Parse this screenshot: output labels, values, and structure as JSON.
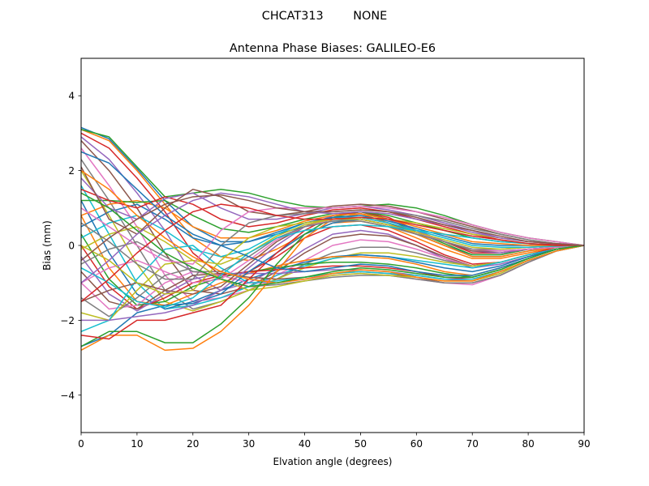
{
  "chart_data": {
    "type": "line",
    "suptitle": "CHCAT313        NONE",
    "title": "Antenna Phase Biases: GALILEO-E6",
    "xlabel": "Elvation angle (degrees)",
    "ylabel": "Bias (mm)",
    "xlim": [
      0,
      90
    ],
    "ylim": [
      -5,
      5
    ],
    "xticks": [
      0,
      10,
      20,
      30,
      40,
      50,
      60,
      70,
      80,
      90
    ],
    "yticks": [
      -4,
      -2,
      0,
      2,
      4
    ],
    "grid": false,
    "legend": "none",
    "x": [
      0,
      5,
      10,
      15,
      20,
      25,
      30,
      35,
      40,
      45,
      50,
      55,
      60,
      65,
      70,
      75,
      80,
      85,
      90
    ],
    "colors": [
      "#1f77b4",
      "#ff7f0e",
      "#2ca02c",
      "#d62728",
      "#9467bd",
      "#8c564b",
      "#e377c2",
      "#7f7f7f",
      "#bcbd22",
      "#17becf"
    ],
    "series": [
      {
        "values": [
          3.15,
          2.85,
          2.05,
          1.2,
          0.5,
          0.1,
          0.1,
          0.3,
          0.5,
          0.65,
          0.7,
          0.55,
          0.3,
          0.0,
          -0.3,
          -0.3,
          -0.15,
          -0.05,
          0.0
        ]
      },
      {
        "values": [
          3.1,
          2.8,
          2.0,
          1.1,
          0.2,
          -0.3,
          -0.4,
          -0.1,
          0.3,
          0.6,
          0.65,
          0.5,
          0.2,
          -0.1,
          -0.35,
          -0.35,
          -0.2,
          -0.05,
          0.0
        ]
      },
      {
        "values": [
          3.1,
          2.9,
          2.1,
          1.3,
          1.4,
          1.5,
          1.4,
          1.2,
          1.05,
          1.0,
          1.05,
          1.1,
          1.0,
          0.8,
          0.55,
          0.35,
          0.2,
          0.1,
          0.0
        ]
      },
      {
        "values": [
          3.0,
          2.6,
          1.8,
          0.9,
          -0.2,
          -0.8,
          -0.7,
          -0.3,
          0.2,
          0.5,
          0.55,
          0.4,
          0.1,
          -0.25,
          -0.5,
          -0.45,
          -0.25,
          -0.05,
          0.0
        ]
      },
      {
        "values": [
          2.9,
          2.3,
          1.4,
          0.4,
          -0.8,
          -1.2,
          -1.0,
          -0.6,
          -0.1,
          0.3,
          0.4,
          0.3,
          0.0,
          -0.35,
          -0.6,
          -0.5,
          -0.3,
          -0.1,
          0.0
        ]
      },
      {
        "values": [
          2.8,
          2.0,
          1.0,
          -0.2,
          -1.2,
          -1.3,
          -1.1,
          -0.7,
          -0.2,
          0.2,
          0.3,
          0.25,
          0.0,
          -0.3,
          -0.55,
          -0.45,
          -0.25,
          -0.1,
          0.0
        ]
      },
      {
        "values": [
          2.6,
          1.6,
          0.5,
          -0.8,
          -1.5,
          -1.4,
          -1.2,
          -0.8,
          -0.4,
          0.0,
          0.15,
          0.1,
          -0.1,
          -0.35,
          -0.55,
          -0.45,
          -0.25,
          -0.1,
          0.0
        ]
      },
      {
        "values": [
          2.3,
          1.2,
          0.0,
          -1.2,
          -1.7,
          -1.5,
          -1.2,
          -0.9,
          -0.5,
          -0.2,
          -0.05,
          -0.05,
          -0.2,
          -0.4,
          -0.55,
          -0.45,
          -0.25,
          -0.1,
          0.0
        ]
      },
      {
        "values": [
          2.0,
          0.8,
          -0.5,
          -1.5,
          -1.75,
          -1.5,
          -1.2,
          -0.9,
          -0.6,
          -0.35,
          -0.2,
          -0.2,
          -0.3,
          -0.45,
          -0.55,
          -0.45,
          -0.25,
          -0.1,
          0.0
        ]
      },
      {
        "values": [
          1.6,
          0.3,
          -1.0,
          -1.7,
          -1.6,
          -1.4,
          -1.1,
          -0.8,
          -0.55,
          -0.35,
          -0.25,
          -0.3,
          -0.4,
          -0.5,
          -0.6,
          -0.45,
          -0.25,
          -0.1,
          0.0
        ]
      },
      {
        "values": [
          1.2,
          -0.2,
          -1.3,
          -1.7,
          -1.5,
          -1.2,
          -0.9,
          -0.65,
          -0.45,
          -0.3,
          -0.25,
          -0.3,
          -0.45,
          -0.6,
          -0.7,
          -0.55,
          -0.3,
          -0.1,
          0.0
        ]
      },
      {
        "values": [
          0.8,
          -0.6,
          -1.5,
          -1.6,
          -1.3,
          -1.0,
          -0.75,
          -0.55,
          -0.4,
          -0.3,
          -0.3,
          -0.35,
          -0.5,
          -0.7,
          -0.8,
          -0.6,
          -0.35,
          -0.1,
          0.0
        ]
      },
      {
        "values": [
          0.3,
          -0.9,
          -1.6,
          -1.5,
          -1.1,
          -0.85,
          -0.7,
          -0.6,
          -0.5,
          -0.45,
          -0.45,
          -0.5,
          -0.6,
          -0.75,
          -0.85,
          -0.65,
          -0.35,
          -0.1,
          0.0
        ]
      },
      {
        "values": [
          0.0,
          -1.1,
          -1.7,
          -1.4,
          -1.0,
          -0.8,
          -0.7,
          -0.65,
          -0.6,
          -0.55,
          -0.55,
          -0.6,
          -0.7,
          -0.85,
          -0.9,
          -0.7,
          -0.4,
          -0.15,
          0.0
        ]
      },
      {
        "values": [
          -0.3,
          -1.3,
          -1.75,
          -1.3,
          -0.9,
          -0.75,
          -0.75,
          -0.75,
          -0.7,
          -0.65,
          -0.65,
          -0.7,
          -0.8,
          -0.9,
          -0.95,
          -0.75,
          -0.4,
          -0.15,
          0.0
        ]
      },
      {
        "values": [
          -0.7,
          -1.5,
          -1.7,
          -1.2,
          -0.8,
          -0.75,
          -0.85,
          -0.9,
          -0.85,
          -0.75,
          -0.7,
          -0.75,
          -0.85,
          -1.0,
          -1.0,
          -0.8,
          -0.45,
          -0.15,
          0.0
        ]
      },
      {
        "values": [
          -1.0,
          -1.7,
          -1.6,
          -1.0,
          -0.7,
          -0.8,
          -1.0,
          -1.0,
          -0.9,
          -0.8,
          -0.75,
          -0.8,
          -0.9,
          -1.0,
          -1.05,
          -0.8,
          -0.45,
          -0.15,
          0.0
        ]
      },
      {
        "values": [
          -1.4,
          -1.9,
          -1.4,
          -0.8,
          -0.6,
          -0.9,
          -1.1,
          -1.05,
          -0.95,
          -0.85,
          -0.8,
          -0.8,
          -0.9,
          -1.0,
          -1.0,
          -0.8,
          -0.45,
          -0.15,
          0.0
        ]
      },
      {
        "values": [
          -1.8,
          -2.0,
          -1.2,
          -0.5,
          -0.4,
          -0.9,
          -1.2,
          -1.1,
          -0.95,
          -0.8,
          -0.75,
          -0.8,
          -0.85,
          -0.95,
          -0.95,
          -0.75,
          -0.4,
          -0.15,
          0.0
        ]
      },
      {
        "values": [
          -2.3,
          -2.0,
          -0.9,
          -0.1,
          0.0,
          -0.6,
          -1.0,
          -0.95,
          -0.85,
          -0.75,
          -0.7,
          -0.75,
          -0.8,
          -0.9,
          -0.9,
          -0.7,
          -0.4,
          -0.15,
          0.0
        ]
      },
      {
        "values": [
          -2.7,
          -2.4,
          -1.8,
          -1.6,
          -1.55,
          -1.3,
          -0.7,
          -0.2,
          0.3,
          0.6,
          0.7,
          0.55,
          0.3,
          0.0,
          -0.25,
          -0.25,
          -0.1,
          -0.05,
          0.0
        ]
      },
      {
        "values": [
          -2.8,
          -2.4,
          -2.4,
          -2.8,
          -2.75,
          -2.3,
          -1.6,
          -0.7,
          0.2,
          0.7,
          0.85,
          0.6,
          0.3,
          0.0,
          -0.3,
          -0.3,
          -0.15,
          -0.05,
          0.0
        ]
      },
      {
        "values": [
          -2.7,
          -2.3,
          -2.3,
          -2.6,
          -2.6,
          -2.1,
          -1.4,
          -0.5,
          0.3,
          0.75,
          0.9,
          0.7,
          0.35,
          0.05,
          -0.25,
          -0.25,
          -0.1,
          -0.05,
          0.0
        ]
      },
      {
        "values": [
          -2.4,
          -2.5,
          -2.0,
          -2.0,
          -1.8,
          -1.6,
          -0.9,
          -0.2,
          0.4,
          0.8,
          0.9,
          0.75,
          0.4,
          0.1,
          -0.2,
          -0.2,
          -0.1,
          -0.05,
          0.0
        ]
      },
      {
        "values": [
          -2.0,
          -2.0,
          -1.9,
          -1.8,
          -1.6,
          -1.2,
          -0.6,
          0.0,
          0.5,
          0.8,
          0.85,
          0.7,
          0.4,
          0.1,
          -0.15,
          -0.2,
          -0.1,
          -0.05,
          0.0
        ]
      },
      {
        "values": [
          -1.5,
          -1.2,
          -1.0,
          -1.2,
          -1.3,
          -1.1,
          -0.5,
          0.1,
          0.5,
          0.75,
          0.75,
          0.6,
          0.35,
          0.1,
          -0.15,
          -0.15,
          -0.1,
          -0.05,
          0.0
        ]
      },
      {
        "values": [
          -1.0,
          -0.6,
          -0.4,
          -0.7,
          -1.0,
          -0.9,
          -0.4,
          0.15,
          0.5,
          0.7,
          0.7,
          0.55,
          0.35,
          0.1,
          -0.1,
          -0.15,
          -0.1,
          -0.05,
          0.0
        ]
      },
      {
        "values": [
          -0.5,
          -0.1,
          0.1,
          -0.3,
          -0.7,
          -0.7,
          -0.3,
          0.2,
          0.5,
          0.65,
          0.65,
          0.5,
          0.3,
          0.1,
          -0.1,
          -0.1,
          -0.05,
          -0.02,
          0.0
        ]
      },
      {
        "values": [
          -0.1,
          0.3,
          0.5,
          0.1,
          -0.4,
          -0.5,
          -0.2,
          0.25,
          0.55,
          0.7,
          0.7,
          0.55,
          0.35,
          0.15,
          -0.05,
          -0.1,
          -0.05,
          -0.02,
          0.0
        ]
      },
      {
        "values": [
          0.2,
          0.6,
          0.8,
          0.4,
          -0.1,
          -0.3,
          -0.1,
          0.3,
          0.6,
          0.75,
          0.75,
          0.6,
          0.4,
          0.2,
          0.0,
          -0.05,
          -0.05,
          -0.02,
          0.0
        ]
      },
      {
        "values": [
          0.5,
          0.9,
          1.1,
          0.7,
          0.2,
          0.0,
          0.1,
          0.35,
          0.6,
          0.75,
          0.8,
          0.65,
          0.45,
          0.25,
          0.05,
          0.0,
          0.0,
          0.0,
          0.0
        ]
      },
      {
        "values": [
          0.8,
          1.1,
          1.2,
          1.0,
          0.5,
          0.2,
          0.2,
          0.4,
          0.65,
          0.8,
          0.85,
          0.7,
          0.5,
          0.3,
          0.1,
          0.05,
          0.0,
          0.0,
          0.0
        ]
      },
      {
        "values": [
          1.2,
          1.2,
          1.15,
          1.2,
          0.8,
          0.45,
          0.35,
          0.5,
          0.7,
          0.85,
          0.9,
          0.8,
          0.6,
          0.4,
          0.2,
          0.1,
          0.05,
          0.0,
          0.0
        ]
      },
      {
        "values": [
          1.5,
          1.2,
          1.0,
          1.3,
          1.1,
          0.7,
          0.5,
          0.6,
          0.8,
          0.95,
          1.0,
          0.9,
          0.7,
          0.5,
          0.3,
          0.15,
          0.05,
          0.0,
          0.0
        ]
      },
      {
        "values": [
          1.8,
          1.0,
          0.7,
          1.25,
          1.4,
          1.0,
          0.7,
          0.7,
          0.85,
          1.0,
          1.05,
          0.95,
          0.8,
          0.6,
          0.4,
          0.2,
          0.1,
          0.05,
          0.0
        ]
      },
      {
        "values": [
          2.1,
          0.7,
          0.3,
          1.0,
          1.5,
          1.3,
          0.9,
          0.8,
          0.9,
          1.05,
          1.1,
          1.05,
          0.9,
          0.7,
          0.5,
          0.3,
          0.15,
          0.05,
          0.0
        ]
      },
      {
        "values": [
          1.0,
          0.5,
          0.0,
          -0.4,
          -0.5,
          0.4,
          0.9,
          1.0,
          1.0,
          1.0,
          1.05,
          1.0,
          0.9,
          0.75,
          0.55,
          0.35,
          0.2,
          0.1,
          0.0
        ]
      },
      {
        "values": [
          0.6,
          0.1,
          -0.5,
          -0.9,
          -0.9,
          0.0,
          0.6,
          0.8,
          0.85,
          0.9,
          0.95,
          0.9,
          0.8,
          0.65,
          0.45,
          0.3,
          0.15,
          0.05,
          0.0
        ]
      },
      {
        "values": [
          0.0,
          -0.4,
          -1.0,
          -1.3,
          -1.2,
          -0.4,
          0.2,
          0.5,
          0.6,
          0.7,
          0.75,
          0.7,
          0.6,
          0.45,
          0.3,
          0.2,
          0.1,
          0.05,
          0.0
        ]
      },
      {
        "values": [
          -0.6,
          -1.0,
          -1.5,
          -1.65,
          -1.4,
          -0.8,
          -0.2,
          0.2,
          0.4,
          0.5,
          0.55,
          0.5,
          0.4,
          0.3,
          0.2,
          0.1,
          0.05,
          0.02,
          0.0
        ]
      },
      {
        "values": [
          2.5,
          2.2,
          1.5,
          0.8,
          0.3,
          0.0,
          -0.3,
          -0.6,
          -0.7,
          -0.6,
          -0.5,
          -0.55,
          -0.7,
          -0.8,
          -0.8,
          -0.6,
          -0.35,
          -0.1,
          0.0
        ]
      },
      {
        "values": [
          2.0,
          1.5,
          0.8,
          0.2,
          -0.3,
          -0.7,
          -0.9,
          -1.0,
          -0.9,
          -0.75,
          -0.65,
          -0.7,
          -0.85,
          -0.95,
          -0.95,
          -0.7,
          -0.4,
          -0.15,
          0.0
        ]
      },
      {
        "values": [
          1.4,
          1.0,
          0.4,
          -0.2,
          -0.6,
          -0.9,
          -1.1,
          -1.0,
          -0.85,
          -0.7,
          -0.6,
          -0.65,
          -0.75,
          -0.85,
          -0.85,
          -0.65,
          -0.35,
          -0.1,
          0.0
        ]
      },
      {
        "values": [
          -1.5,
          -0.9,
          -0.2,
          0.4,
          0.9,
          1.1,
          1.0,
          0.8,
          0.7,
          0.7,
          0.75,
          0.7,
          0.55,
          0.4,
          0.25,
          0.15,
          0.05,
          0.02,
          0.0
        ]
      },
      {
        "values": [
          -1.0,
          -0.4,
          0.3,
          0.8,
          1.2,
          1.4,
          1.3,
          1.1,
          0.9,
          0.85,
          0.9,
          0.85,
          0.7,
          0.55,
          0.35,
          0.2,
          0.1,
          0.05,
          0.0
        ]
      },
      {
        "values": [
          -0.4,
          0.2,
          0.7,
          1.1,
          1.3,
          1.35,
          1.2,
          1.0,
          0.9,
          0.9,
          0.95,
          0.9,
          0.75,
          0.55,
          0.4,
          0.25,
          0.1,
          0.05,
          0.0
        ]
      }
    ]
  }
}
